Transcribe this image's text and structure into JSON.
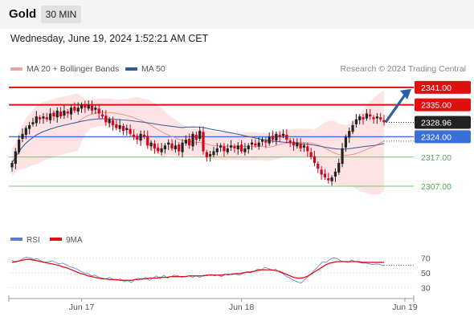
{
  "header": {
    "asset": "Gold",
    "timeframe": "30 MIN"
  },
  "timestamp": "Wednesday, June 19, 2024 1:52:21 AM CET",
  "legend": {
    "bollinger": "MA 20 + Bollinger Bands",
    "ma50": "MA 50",
    "credit": "Research © 2024 Trading Central"
  },
  "rsi_legend": {
    "rsi": "RSI",
    "ma9": "9MA"
  },
  "colors": {
    "bollinger": "#ee8888",
    "ma50": "#2f5b9c",
    "resistance": "#e01010",
    "support": "#4caf50",
    "pivot": "#3a6fd8",
    "current": "#222222",
    "arrow": "#2d5fa6",
    "candle_up": "#222222",
    "candle_down": "#d8001a"
  },
  "chart_data": [
    {
      "type": "candlestick",
      "ylim": [
        2296.5,
        2344
      ],
      "levels": [
        {
          "value": 2341.0,
          "label": "2341.00",
          "kind": "resistance"
        },
        {
          "value": 2335.0,
          "label": "2335.00",
          "kind": "resistance"
        },
        {
          "value": 2328.96,
          "label": "2328.96",
          "kind": "current"
        },
        {
          "value": 2324.0,
          "label": "2324.00",
          "kind": "pivot"
        },
        {
          "value": 2317.0,
          "label": "2317.00",
          "kind": "support"
        },
        {
          "value": 2307.0,
          "label": "2307.00",
          "kind": "support"
        }
      ],
      "x_ticks": [
        {
          "index": 20,
          "label": "Jun 17"
        },
        {
          "index": 66,
          "label": "Jun 18"
        },
        {
          "index": 113,
          "label": "Jun 19"
        }
      ],
      "arrow": {
        "from": 2329,
        "to": 2341,
        "direction": "up"
      },
      "closes": [
        2315,
        2319,
        2323,
        2325,
        2327,
        2328,
        2329,
        2331,
        2330,
        2331,
        2330,
        2332,
        2331,
        2333,
        2331,
        2333,
        2332,
        2334,
        2333,
        2334,
        2335,
        2334,
        2335,
        2333,
        2334,
        2332,
        2331,
        2329,
        2330,
        2328,
        2327,
        2328,
        2326,
        2327,
        2325,
        2324,
        2323,
        2325,
        2324,
        2321,
        2322,
        2320,
        2319,
        2320,
        2321,
        2322,
        2320,
        2321,
        2319,
        2322,
        2323,
        2321,
        2325,
        2323,
        2326,
        2319,
        2317,
        2318,
        2319,
        2320,
        2321,
        2319,
        2320,
        2321,
        2320,
        2321,
        2319,
        2320,
        2321,
        2322,
        2321,
        2322,
        2323,
        2322,
        2324,
        2323,
        2325,
        2324,
        2325,
        2323,
        2322,
        2321,
        2322,
        2320,
        2321,
        2319,
        2317,
        2315,
        2313,
        2311,
        2310,
        2309,
        2310,
        2312,
        2315,
        2320,
        2324,
        2326,
        2328,
        2330,
        2331,
        2330,
        2332,
        2331,
        2330,
        2331,
        2330,
        2329
      ]
    },
    {
      "type": "line",
      "title": "RSI",
      "ylim": [
        20,
        80
      ],
      "y_ticks": [
        30,
        50,
        70
      ],
      "series": [
        {
          "name": "RSI",
          "values": [
            67,
            64,
            66,
            69,
            71,
            70,
            68,
            69,
            66,
            64,
            65,
            66,
            64,
            62,
            63,
            61,
            58,
            57,
            55,
            52,
            50,
            49,
            46,
            47,
            44,
            43,
            42,
            44,
            41,
            40,
            42,
            38,
            40,
            37,
            41,
            43,
            41,
            44,
            40,
            43,
            46,
            42,
            47,
            43,
            45,
            47,
            46,
            44,
            45,
            46,
            44,
            46,
            44,
            47,
            46,
            48,
            46,
            47,
            45,
            48,
            47,
            49,
            48,
            47,
            49,
            51,
            50,
            52,
            55,
            54,
            57,
            56,
            53,
            55,
            51,
            49,
            45,
            43,
            40,
            38,
            36,
            41,
            45,
            50,
            55,
            60,
            65,
            64,
            68,
            70,
            69,
            66,
            65,
            64,
            67,
            65,
            64,
            63,
            63,
            62,
            61,
            62,
            61,
            60
          ]
        },
        {
          "name": "9MA",
          "values": [
            64,
            65,
            66,
            67,
            68,
            68,
            67,
            66,
            65,
            64,
            63,
            62,
            61,
            60,
            58,
            57,
            55,
            53,
            51,
            49,
            48,
            46,
            45,
            44,
            43,
            42,
            42,
            41,
            41,
            41,
            40,
            40,
            40,
            40,
            41,
            41,
            42,
            42,
            43,
            43,
            43,
            44,
            44,
            44,
            45,
            45,
            45,
            45,
            45,
            46,
            46,
            46,
            46,
            46,
            47,
            47,
            47,
            47,
            47,
            48,
            48,
            48,
            49,
            49,
            50,
            51,
            51,
            52,
            53,
            54,
            54,
            54,
            54,
            53,
            52,
            50,
            48,
            46,
            44,
            43,
            43,
            44,
            46,
            49,
            52,
            55,
            58,
            61,
            63,
            64,
            65,
            65,
            65,
            65,
            65,
            65,
            65,
            64,
            64,
            64,
            64,
            64,
            64,
            64
          ]
        }
      ]
    }
  ]
}
